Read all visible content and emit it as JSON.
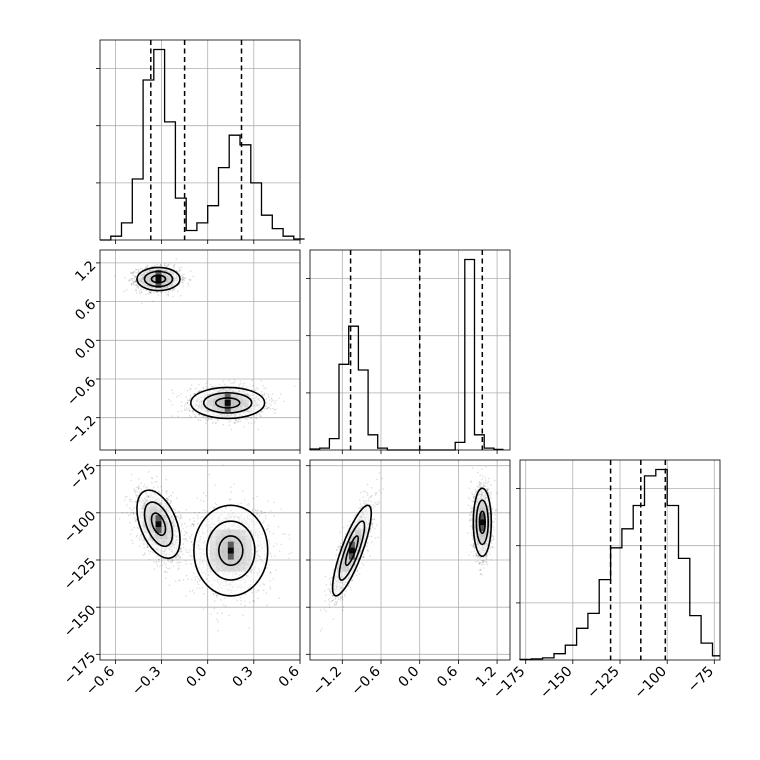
{
  "chart_data": {
    "type": "corner",
    "grid": true,
    "parameters": [
      {
        "range": [
          -0.7,
          0.6
        ],
        "ticks": [
          -0.6,
          -0.3,
          0.0,
          0.3,
          0.6
        ],
        "tick_labels": [
          "−0.6",
          "−0.3",
          "0.0",
          "0.3",
          "0.6"
        ],
        "quantiles": [
          -0.37,
          -0.15,
          0.22
        ],
        "histogram": {
          "edges": [
            -0.7,
            -0.63,
            -0.56,
            -0.49,
            -0.42,
            -0.35,
            -0.28,
            -0.21,
            -0.14,
            -0.07,
            0.0,
            0.07,
            0.14,
            0.21,
            0.28,
            0.35,
            0.42,
            0.49,
            0.56,
            0.63
          ],
          "counts": [
            0.0,
            2.0,
            9.0,
            32.0,
            84.0,
            100.0,
            62.0,
            22.0,
            5.0,
            9.0,
            18.0,
            38.0,
            55.0,
            50.0,
            30.0,
            13.0,
            6.0,
            2.0,
            0.5
          ]
        }
      },
      {
        "range": [
          -1.7,
          1.4
        ],
        "ticks": [
          -1.2,
          -0.6,
          0.0,
          0.6,
          1.2
        ],
        "tick_labels": [
          "−1.2",
          "−0.6",
          "0.0",
          "0.6",
          "1.2"
        ],
        "quantiles": [
          -1.07,
          0.0,
          0.97
        ],
        "histogram": {
          "edges": [
            -1.7,
            -1.55,
            -1.4,
            -1.25,
            -1.1,
            -0.95,
            -0.8,
            -0.65,
            -0.5,
            -0.35,
            -0.2,
            -0.05,
            0.1,
            0.25,
            0.4,
            0.55,
            0.7,
            0.85,
            1.0,
            1.15,
            1.3
          ],
          "counts": [
            0.5,
            1.0,
            6.0,
            45.0,
            65.0,
            42.0,
            8.0,
            1.0,
            0.0,
            0.0,
            0.0,
            0.0,
            0.0,
            0.0,
            0.0,
            4.0,
            100.0,
            8.0,
            1.0,
            0.3
          ]
        }
      },
      {
        "range": [
          -178,
          -72
        ],
        "ticks": [
          -175,
          -150,
          -125,
          -100,
          -75
        ],
        "tick_labels": [
          "−175",
          "−150",
          "−125",
          "−100",
          "−75"
        ],
        "quantiles": [
          -130,
          -114,
          -101
        ],
        "histogram": {
          "edges": [
            -178,
            -172,
            -166,
            -160,
            -154,
            -148,
            -142,
            -136,
            -130,
            -124,
            -118,
            -112,
            -106,
            -100,
            -94,
            -88,
            -82,
            -76,
            -72
          ],
          "counts": [
            0.3,
            0.5,
            1.0,
            3.0,
            7.0,
            15.0,
            22.0,
            38.0,
            53.0,
            62.0,
            73.0,
            87.0,
            90.0,
            73.0,
            48.0,
            21.0,
            8.0,
            2.0
          ]
        }
      }
    ],
    "pairs": [
      {
        "x_param": 0,
        "y_param": 1,
        "modes": [
          {
            "center": [
              -0.32,
              0.95
            ],
            "sd": [
              0.07,
              0.09
            ],
            "rho": 0.0,
            "weight": 0.5
          },
          {
            "center": [
              0.13,
              -0.97
            ],
            "sd": [
              0.12,
              0.12
            ],
            "rho": 0.0,
            "weight": 0.5
          }
        ]
      },
      {
        "x_param": 0,
        "y_param": 2,
        "modes": [
          {
            "center": [
              -0.32,
              -106
            ],
            "sd": [
              0.07,
              9
            ],
            "rho": -0.45,
            "weight": 0.5
          },
          {
            "center": [
              0.15,
              -120
            ],
            "sd": [
              0.12,
              12
            ],
            "rho": 0.0,
            "weight": 0.5
          }
        ]
      },
      {
        "x_param": 1,
        "y_param": 2,
        "modes": [
          {
            "center": [
              -1.05,
              -120
            ],
            "sd": [
              0.15,
              12
            ],
            "rho": 0.82,
            "weight": 0.5
          },
          {
            "center": [
              0.97,
              -105
            ],
            "sd": [
              0.07,
              9
            ],
            "rho": 0.0,
            "weight": 0.5
          }
        ]
      }
    ]
  }
}
